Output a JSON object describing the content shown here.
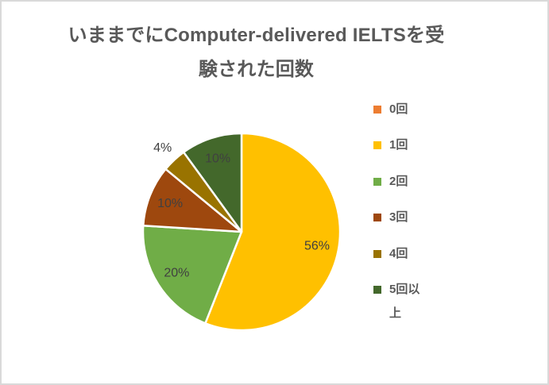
{
  "frame": {
    "border_color": "#D9D9D9",
    "background_color": "#FFFFFF"
  },
  "chart_data": {
    "type": "pie",
    "title": "いままでにComputer-delivered IELTSを受験された回数",
    "title_lines": [
      "いままでにComputer-delivered IELTSを受",
      "験された回数"
    ],
    "title_color": "#595959",
    "categories": [
      "0回",
      "1回",
      "2回",
      "3回",
      "4回",
      "5回以上"
    ],
    "values": [
      0,
      56,
      20,
      10,
      4,
      10
    ],
    "data_labels": [
      "",
      "56%",
      "20%",
      "10%",
      "4%",
      "10%"
    ],
    "colors": [
      "#ED7D31",
      "#FFC000",
      "#70AD47",
      "#9E480E",
      "#997300",
      "#43682B"
    ],
    "slice_border_color": "#FFFFFF",
    "label_color": "#404040",
    "legend_position": "right",
    "legend_text_color": "#595959",
    "start_angle": "top",
    "direction": "clockwise"
  }
}
